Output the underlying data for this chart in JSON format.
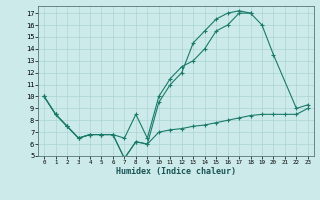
{
  "xlabel": "Humidex (Indice chaleur)",
  "background_color": "#cceaea",
  "grid_color": "#aad4d4",
  "line_color": "#1a7a6a",
  "xlim": [
    -0.5,
    23.5
  ],
  "ylim": [
    5,
    17.6
  ],
  "yticks": [
    5,
    6,
    7,
    8,
    9,
    10,
    11,
    12,
    13,
    14,
    15,
    16,
    17
  ],
  "xticks": [
    0,
    1,
    2,
    3,
    4,
    5,
    6,
    7,
    8,
    9,
    10,
    11,
    12,
    13,
    14,
    15,
    16,
    17,
    18,
    19,
    20,
    21,
    22,
    23
  ],
  "line1_x": [
    0,
    1,
    2,
    3,
    4,
    5,
    6,
    7,
    8,
    9,
    10,
    11,
    12,
    13,
    14,
    15,
    16,
    17,
    18,
    19,
    20,
    22,
    23
  ],
  "line1_y": [
    10,
    8.5,
    7.5,
    6.5,
    6.8,
    6.8,
    6.8,
    6.5,
    8.5,
    6.5,
    10.0,
    11.5,
    12.5,
    13.0,
    14.0,
    15.5,
    16.0,
    17.0,
    17.0,
    16.0,
    13.5,
    9.0,
    9.3
  ],
  "line2_x": [
    0,
    1,
    2,
    3,
    4,
    5,
    6,
    7,
    8,
    9,
    10,
    11,
    12,
    13,
    14,
    15,
    16,
    17,
    18
  ],
  "line2_y": [
    10,
    8.5,
    7.5,
    6.5,
    6.8,
    6.8,
    6.8,
    4.8,
    6.2,
    6.0,
    9.5,
    11.0,
    12.0,
    14.5,
    15.5,
    16.5,
    17.0,
    17.2,
    17.0
  ],
  "line3_x": [
    0,
    1,
    2,
    3,
    4,
    5,
    6,
    7,
    8,
    9,
    10,
    11,
    12,
    13,
    14,
    15,
    16,
    17,
    18,
    19,
    20,
    21,
    22,
    23
  ],
  "line3_y": [
    10,
    8.5,
    7.5,
    6.5,
    6.8,
    6.8,
    6.8,
    4.8,
    6.2,
    6.0,
    7.0,
    7.2,
    7.3,
    7.5,
    7.6,
    7.8,
    8.0,
    8.2,
    8.4,
    8.5,
    8.5,
    8.5,
    8.5,
    9.0
  ]
}
